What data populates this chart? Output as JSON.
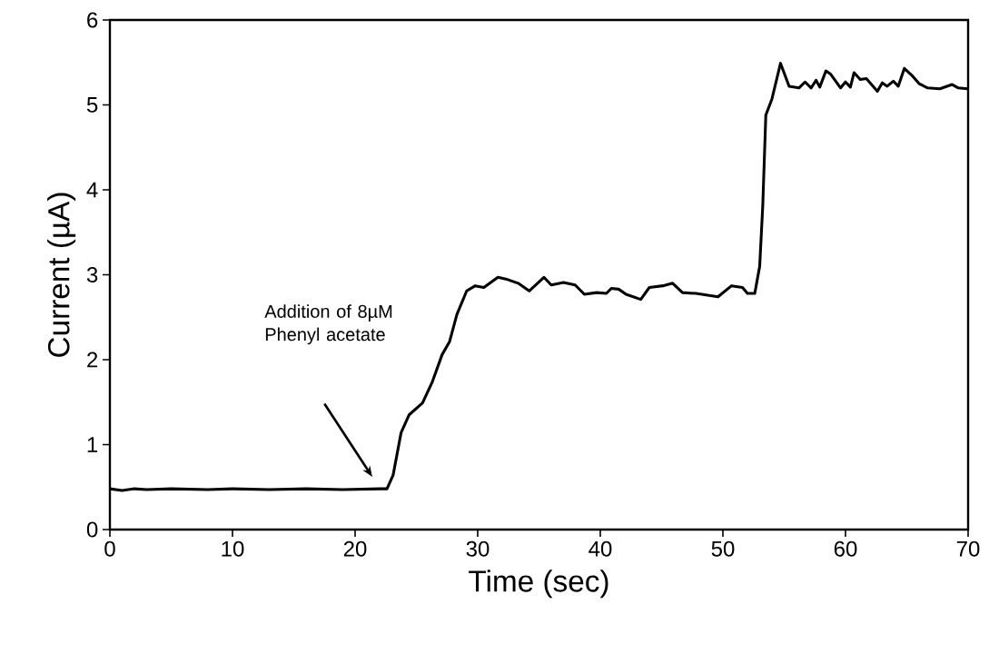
{
  "chart_data": {
    "type": "line",
    "xlabel": "Time (sec)",
    "ylabel": "Current (µA)",
    "xlim": [
      0,
      70
    ],
    "ylim": [
      0,
      6
    ],
    "xticks": [
      0,
      10,
      20,
      30,
      40,
      50,
      60,
      70
    ],
    "yticks": [
      0,
      1,
      2,
      3,
      4,
      5,
      6
    ],
    "annotations": [
      "Addition of 8µM Phenyl acetate"
    ],
    "series": [
      {
        "color": "#000000",
        "x": [
          0,
          1,
          2,
          3,
          5,
          8,
          10,
          13,
          16,
          19,
          22,
          22.6,
          23.1,
          23.75,
          24.4,
          25.5,
          26.3,
          27.1,
          27.7,
          28.3,
          29.1,
          29.8,
          30.5,
          31.65,
          32.3,
          33.3,
          34.2,
          35.4,
          36.0,
          37.0,
          37.95,
          38.7,
          39.7,
          40.5,
          40.9,
          41.5,
          42.1,
          43.3,
          44.0,
          45.1,
          45.9,
          46.7,
          47.8,
          49.6,
          50.7,
          51.6,
          52.0,
          52.6,
          53.0,
          53.25,
          53.5,
          54.0,
          54.7,
          55.4,
          56.2,
          56.7,
          57.2,
          57.6,
          57.9,
          58.4,
          58.8,
          59.6,
          60.0,
          60.4,
          60.7,
          61.2,
          61.7,
          62.6,
          63.0,
          63.4,
          63.9,
          64.3,
          64.8,
          65.4,
          66.0,
          66.7,
          67.7,
          68.7,
          69.2,
          69.95
        ],
        "values": [
          0.48,
          0.46,
          0.48,
          0.47,
          0.48,
          0.47,
          0.48,
          0.47,
          0.48,
          0.47,
          0.48,
          0.48,
          0.64,
          1.14,
          1.35,
          1.49,
          1.74,
          2.06,
          2.21,
          2.53,
          2.81,
          2.87,
          2.85,
          2.97,
          2.95,
          2.9,
          2.81,
          2.97,
          2.88,
          2.91,
          2.88,
          2.77,
          2.79,
          2.78,
          2.84,
          2.83,
          2.77,
          2.71,
          2.85,
          2.87,
          2.9,
          2.79,
          2.78,
          2.74,
          2.87,
          2.85,
          2.78,
          2.78,
          3.1,
          3.81,
          4.88,
          5.07,
          5.49,
          5.22,
          5.2,
          5.27,
          5.2,
          5.29,
          5.21,
          5.4,
          5.36,
          5.2,
          5.27,
          5.21,
          5.38,
          5.3,
          5.31,
          5.16,
          5.26,
          5.22,
          5.28,
          5.22,
          5.43,
          5.35,
          5.25,
          5.2,
          5.19,
          5.24,
          5.2,
          5.19
        ]
      }
    ]
  }
}
